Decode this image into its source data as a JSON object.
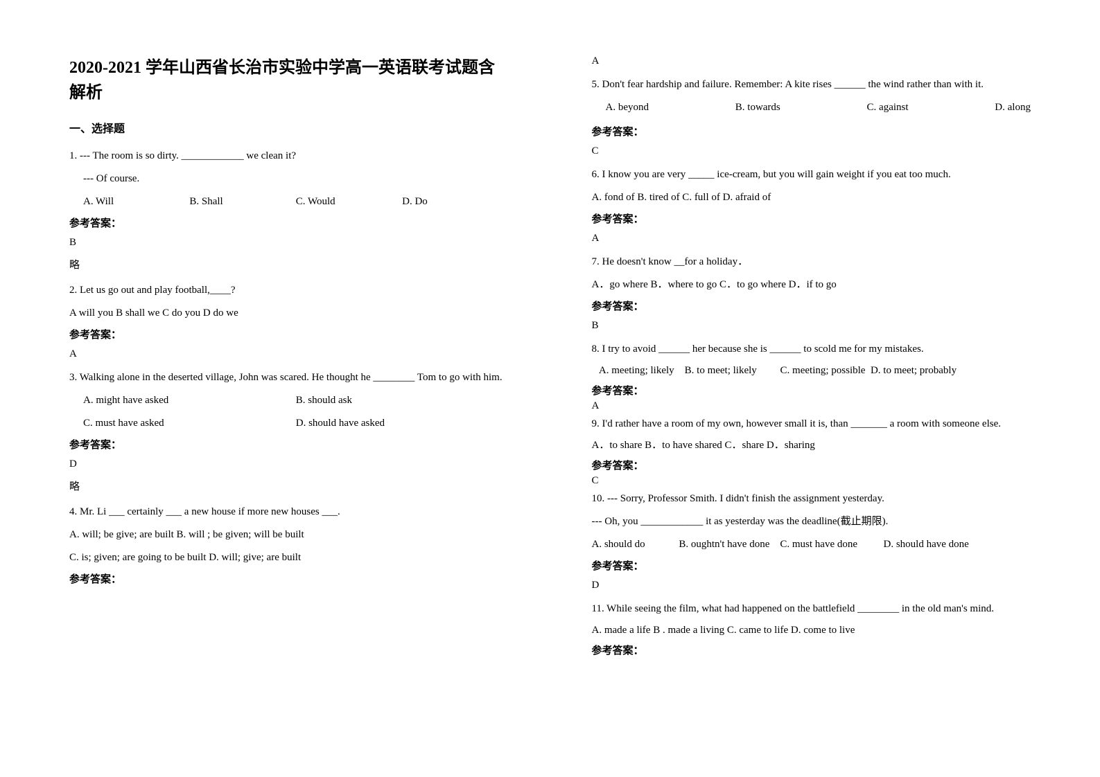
{
  "doc_title": "2020-2021 学年山西省长治市实验中学高一英语联考试题含解析",
  "section1_heading": "一、选择题",
  "answer_label": "参考答案：",
  "slight_label": "略",
  "q1": {
    "stem": "1. --- The room is so dirty. ____________ we clean it?",
    "sub": "--- Of course.",
    "opts": [
      "A. Will",
      "B. Shall",
      "C. Would",
      "D. Do"
    ],
    "ans": "B"
  },
  "q2": {
    "stem": "2. Let us go out and play football,____?",
    "opts_line": "A will you   B shall we   C do you   D do we",
    "ans": "A"
  },
  "q3": {
    "stem": "3. Walking alone in the deserted village, John was scared. He thought he ________ Tom to go with him.",
    "opts1": [
      "A. might have asked",
      "B. should ask"
    ],
    "opts2": [
      "C. must have asked",
      "D. should have asked"
    ],
    "ans": "D"
  },
  "q4": {
    "stem": "4. Mr. Li ___ certainly ___ a new house if more new houses ___.",
    "opts1": "A. will; be give; are built     B. will ; be given; will be built",
    "opts2": "C. is; given; are going to be built     D. will; give; are built",
    "ans": "A"
  },
  "q5": {
    "stem": "5. Don't fear hardship and failure. Remember: A kite rises ______ the wind rather than with it.",
    "opts": [
      "A. beyond",
      "B. towards",
      "C. against",
      "D. along"
    ],
    "ans": "C"
  },
  "q6": {
    "stem": "6. I know you are very _____ ice-cream, but you will gain weight if you eat too much.",
    "opts_line": "A. fond of B. tired of      C. full of          D. afraid of",
    "ans": "A"
  },
  "q7": {
    "stem": "7. He doesn't know __for a holiday．",
    "opts_line": "A．go where   B．where to go   C．to go where   D．if to go",
    "ans": "B"
  },
  "q8": {
    "stem": "8. I try to avoid ______ her because she is ______ to scold me for my mistakes.",
    "opts_line": "   A. meeting; likely    B. to meet; likely         C. meeting; possible  D. to meet; probably",
    "ans": "A"
  },
  "q9": {
    "stem": "9. I'd rather have a room of my own, however small it is, than _______ a room with someone else.",
    "opts_line": "A．to share   B．to have shared   C．share   D．sharing",
    "ans": "C"
  },
  "q10": {
    "stem": "10.  --- Sorry, Professor Smith. I didn't finish the assignment yesterday.",
    "sub": "  --- Oh, you ____________ it as yesterday was the deadline(截止期限).",
    "opts_line": "A. should do             B. oughtn't have done    C. must have done          D. should have done",
    "ans": "D"
  },
  "q11": {
    "stem": "11. While seeing the film, what had happened on the battlefield ________ in the old man's mind.",
    "opts_line": "A. made a life    B . made a living    C. came to life    D. come to live"
  }
}
